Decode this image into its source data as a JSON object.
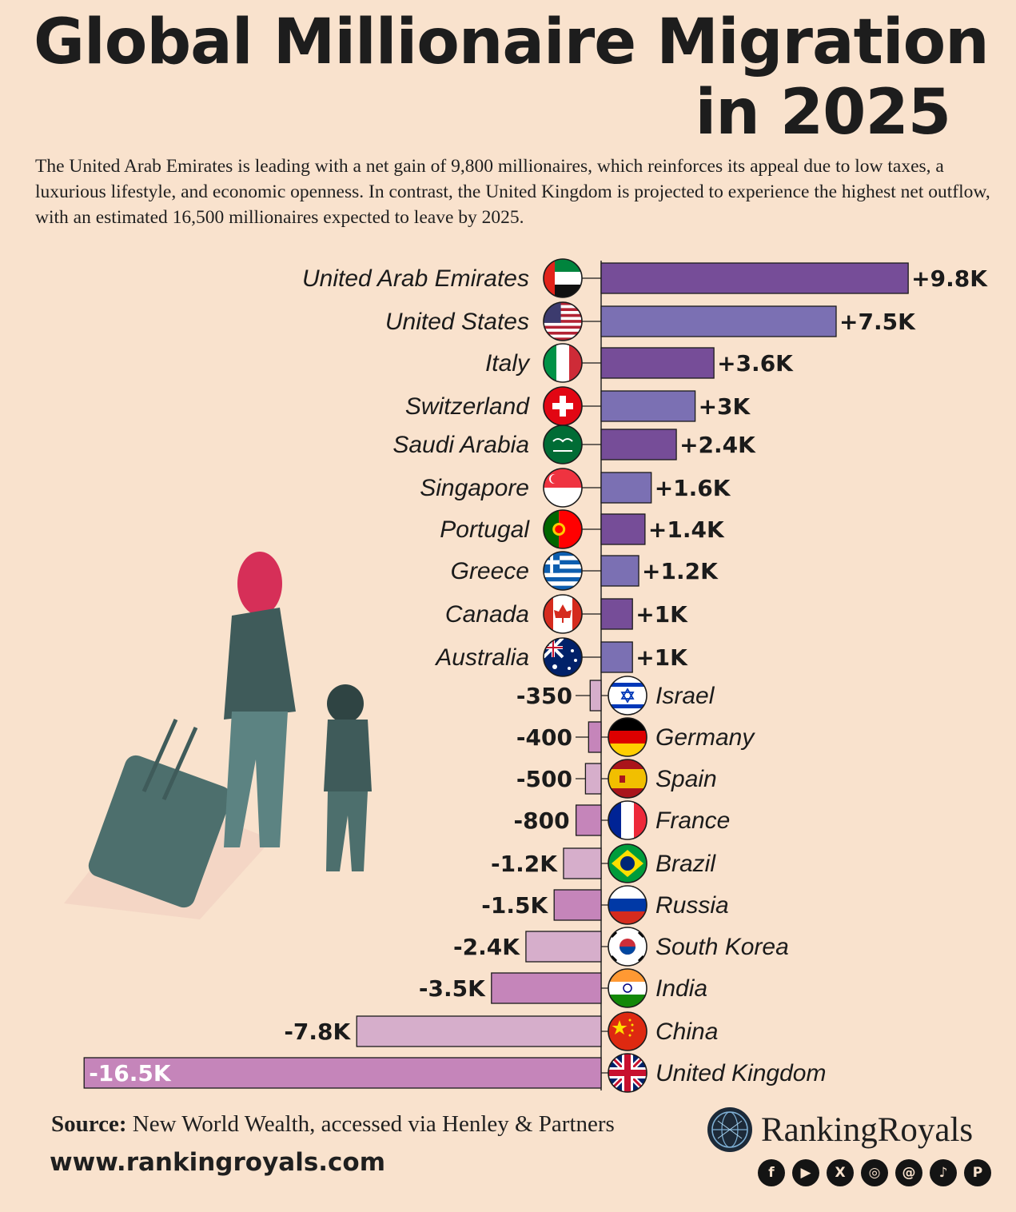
{
  "title": {
    "line1": "Global Millionaire Migration",
    "line2": "in 2025"
  },
  "subtitle": "The United Arab Emirates is leading with a net gain of 9,800 millionaires, which reinforces its appeal due to low taxes, a luxurious lifestyle, and economic openness. In contrast, the United Kingdom is projected to experience the highest net outflow, with an estimated 16,500 millionaires expected to leave by 2025.",
  "colors": {
    "background": "#f9e2cd",
    "gain_dark": "#764d98",
    "gain_light": "#7b70b3",
    "loss_dark": "#c585ba",
    "loss_light": "#d6aecb"
  },
  "chart_data": {
    "type": "bar",
    "orientation": "horizontal",
    "title": "Global Millionaire Migration in 2025",
    "unit": "net millionaire migration",
    "categories": [
      "United Arab Emirates",
      "United States",
      "Italy",
      "Switzerland",
      "Saudi Arabia",
      "Singapore",
      "Portugal",
      "Greece",
      "Canada",
      "Australia",
      "Israel",
      "Germany",
      "Spain",
      "France",
      "Brazil",
      "Russia",
      "South Korea",
      "India",
      "China",
      "United Kingdom"
    ],
    "values": [
      9800,
      7500,
      3600,
      3000,
      2400,
      1600,
      1400,
      1200,
      1000,
      1000,
      -350,
      -400,
      -500,
      -800,
      -1200,
      -1500,
      -2400,
      -3500,
      -7800,
      -16500
    ],
    "value_labels": [
      "+9.8K",
      "+7.5K",
      "+3.6K",
      "+3K",
      "+2.4K",
      "+1.6K",
      "+1.4K",
      "+1.2K",
      "+1K",
      "+1K",
      "-350",
      "-400",
      "-500",
      "-800",
      "-1.2K",
      "-1.5K",
      "-2.4K",
      "-3.5K",
      "-7.8K",
      "-16.5K"
    ],
    "flags": [
      "uae-flag-icon",
      "usa-flag-icon",
      "italy-flag-icon",
      "switzerland-flag-icon",
      "saudi-arabia-flag-icon",
      "singapore-flag-icon",
      "portugal-flag-icon",
      "greece-flag-icon",
      "canada-flag-icon",
      "australia-flag-icon",
      "israel-flag-icon",
      "germany-flag-icon",
      "spain-flag-icon",
      "france-flag-icon",
      "brazil-flag-icon",
      "russia-flag-icon",
      "south-korea-flag-icon",
      "india-flag-icon",
      "china-flag-icon",
      "uk-flag-icon"
    ]
  },
  "footer": {
    "source_label": "Source:",
    "source_text": " New World Wealth, accessed via Henley & Partners",
    "website": "www.rankingroyals.com",
    "brand": "RankingRoyals",
    "social_icons": [
      {
        "name": "facebook-icon",
        "glyph": "f"
      },
      {
        "name": "youtube-icon",
        "glyph": "▶"
      },
      {
        "name": "x-icon",
        "glyph": "X"
      },
      {
        "name": "instagram-icon",
        "glyph": "◎"
      },
      {
        "name": "threads-icon",
        "glyph": "@"
      },
      {
        "name": "tiktok-icon",
        "glyph": "♪"
      },
      {
        "name": "pinterest-icon",
        "glyph": "P"
      }
    ]
  }
}
